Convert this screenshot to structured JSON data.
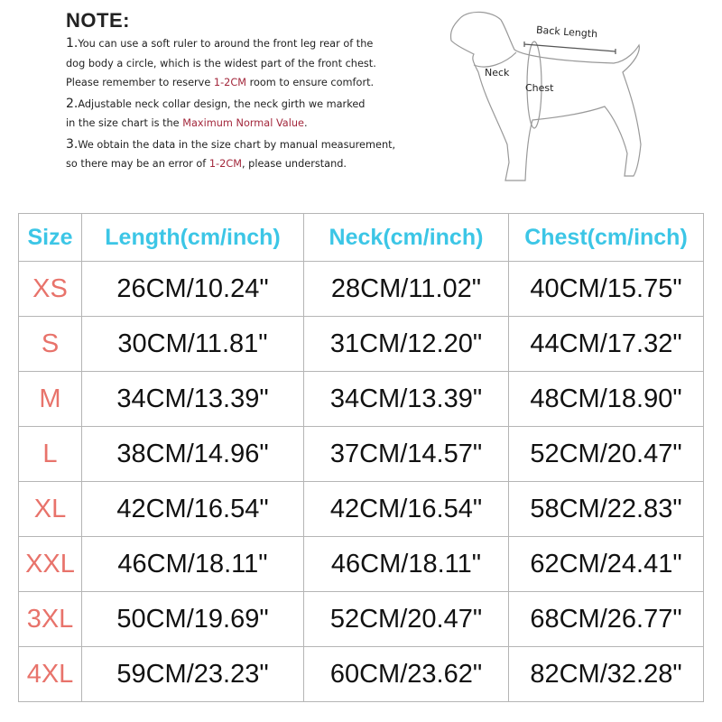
{
  "note": {
    "title": "NOTE:",
    "item1": {
      "num": "1.",
      "line1": "You can use a soft ruler to around the front leg rear of the",
      "line2": "dog body a circle, which is the widest part of the front chest.",
      "line3_pre": "Please remember to reserve ",
      "line3_red": "1-2CM",
      "line3_post": " room to ensure comfort."
    },
    "item2": {
      "num": "2.",
      "line1": "Adjustable neck collar design, the neck girth we marked",
      "line2_pre": "in the size chart is the ",
      "line2_red": "Maximum Normal Value",
      "line2_post": "."
    },
    "item3": {
      "num": "3.",
      "line1": "We obtain the data in the size chart by manual measurement,",
      "line2_pre": "so there may be an error of ",
      "line2_red": "1-2CM",
      "line2_post": ", please understand."
    }
  },
  "diagram": {
    "back_length": "Back Length",
    "neck": "Neck",
    "chest": "Chest"
  },
  "colors": {
    "header": "#3cc6e6",
    "size": "#e8736b",
    "highlight": "#a3283c"
  },
  "table": {
    "headers": [
      "Size",
      "Length(cm/inch)",
      "Neck(cm/inch)",
      "Chest(cm/inch)"
    ],
    "rows": [
      [
        "XS",
        "26CM/10.24\"",
        "28CM/11.02\"",
        "40CM/15.75\""
      ],
      [
        "S",
        "30CM/11.81\"",
        "31CM/12.20\"",
        "44CM/17.32\""
      ],
      [
        "M",
        "34CM/13.39\"",
        "34CM/13.39\"",
        "48CM/18.90\""
      ],
      [
        "L",
        "38CM/14.96\"",
        "37CM/14.57\"",
        "52CM/20.47\""
      ],
      [
        "XL",
        "42CM/16.54\"",
        "42CM/16.54\"",
        "58CM/22.83\""
      ],
      [
        "XXL",
        "46CM/18.11\"",
        "46CM/18.11\"",
        "62CM/24.41\""
      ],
      [
        "3XL",
        "50CM/19.69\"",
        "52CM/20.47\"",
        "68CM/26.77\""
      ],
      [
        "4XL",
        "59CM/23.23\"",
        "60CM/23.62\"",
        "82CM/32.28\""
      ]
    ]
  }
}
